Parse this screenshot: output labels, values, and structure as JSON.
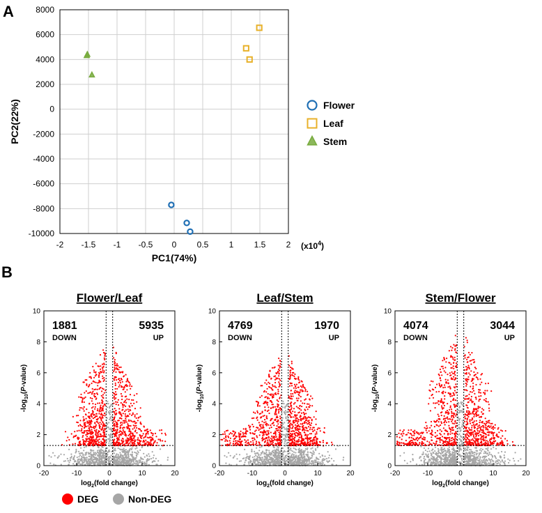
{
  "panels": {
    "a_label": "A",
    "b_label": "B"
  },
  "chart_data": [
    {
      "type": "scatter",
      "panel": "A",
      "xlabel": "PC1(74%)",
      "ylabel": "PC2(22%)",
      "x_multiplier_label": {
        "base": "(x10",
        "exp": "4",
        "close": ")"
      },
      "xlim": [
        -2,
        2
      ],
      "ylim": [
        -10000,
        8000
      ],
      "xticks": [
        "-2",
        "-1.5",
        "-1",
        "-0.5",
        "0",
        "0.5",
        "1",
        "1.5",
        "2"
      ],
      "yticks": [
        "8000",
        "6000",
        "4000",
        "2000",
        "0",
        "-2000",
        "-4000",
        "-6000",
        "-8000",
        "-10000"
      ],
      "grid": true,
      "legend_position": "right",
      "series": [
        {
          "name": "Flower",
          "marker": "circle",
          "color": "#1f6fb4",
          "points": [
            [
              -0.05,
              -7700
            ],
            [
              0.22,
              -9150
            ],
            [
              0.28,
              -9850
            ]
          ]
        },
        {
          "name": "Leaf",
          "marker": "square",
          "color": "#e8b12a",
          "points": [
            [
              1.26,
              4900
            ],
            [
              1.32,
              4000
            ],
            [
              1.49,
              6550
            ]
          ]
        },
        {
          "name": "Stem",
          "marker": "triangle",
          "color": "#78ab3e",
          "points": [
            [
              -1.52,
              4400
            ],
            [
              -1.53,
              4300
            ],
            [
              -1.44,
              2750
            ]
          ]
        }
      ]
    },
    {
      "type": "scatter",
      "panel": "B",
      "title": "Flower/Leaf",
      "xlabel": "log2(fold change)",
      "ylabel": "-log10(P-value)",
      "xlim": [
        -20,
        20
      ],
      "ylim": [
        0,
        10
      ],
      "xticks": [
        "-20",
        "-10",
        "0",
        "10",
        "20"
      ],
      "yticks": [
        "0",
        "2",
        "4",
        "6",
        "8",
        "10"
      ],
      "down_count": "1881",
      "down_label": "DOWN",
      "up_count": "5935",
      "up_label": "UP",
      "fc_threshold": 1,
      "p_threshold": 1.3,
      "deg_left_cluster_center": -6,
      "deg_right_cluster_center": 10,
      "deg_peak": 8.2
    },
    {
      "type": "scatter",
      "panel": "B",
      "title": "Leaf/Stem",
      "xlabel": "log2(fold change)",
      "ylabel": "-log10(P-value)",
      "xlim": [
        -20,
        20
      ],
      "ylim": [
        0,
        10
      ],
      "xticks": [
        "-20",
        "-10",
        "0",
        "10",
        "20"
      ],
      "yticks": [
        "0",
        "2",
        "4",
        "6",
        "8",
        "10"
      ],
      "down_count": "4769",
      "down_label": "DOWN",
      "up_count": "1970",
      "up_label": "UP",
      "fc_threshold": 1,
      "p_threshold": 1.3,
      "deg_left_cluster_center": -14,
      "deg_right_cluster_center": 6,
      "deg_peak": 7.6
    },
    {
      "type": "scatter",
      "panel": "B",
      "title": "Stem/Flower",
      "xlabel": "log2(fold change)",
      "ylabel": "-log10(P-value)",
      "xlim": [
        -20,
        20
      ],
      "ylim": [
        0,
        10
      ],
      "xticks": [
        "-20",
        "-10",
        "0",
        "10",
        "20"
      ],
      "yticks": [
        "0",
        "2",
        "4",
        "6",
        "8",
        "10"
      ],
      "down_count": "4074",
      "down_label": "DOWN",
      "up_count": "3044",
      "up_label": "UP",
      "fc_threshold": 1,
      "p_threshold": 1.3,
      "deg_left_cluster_center": -14,
      "deg_right_cluster_center": 8,
      "deg_peak": 9.0
    }
  ],
  "volcano_legend": [
    {
      "label": "DEG",
      "color": "#ff0000"
    },
    {
      "label": "Non-DEG",
      "color": "#a6a6a6"
    }
  ]
}
